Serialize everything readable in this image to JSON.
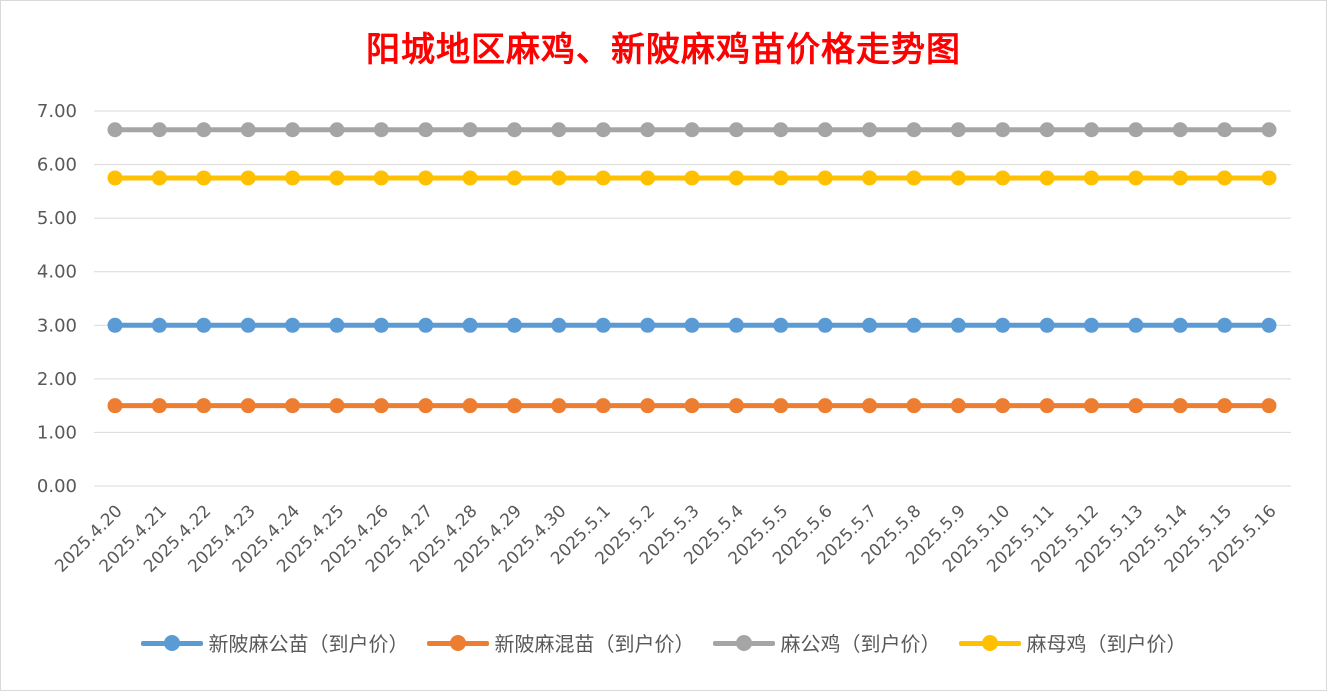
{
  "chart_data": {
    "type": "line",
    "title": "阳城地区麻鸡、新陂麻鸡苗价格走势图",
    "xlabel": "",
    "ylabel": "",
    "ylim": [
      0,
      7
    ],
    "yticks": [
      "0.00",
      "1.00",
      "2.00",
      "3.00",
      "4.00",
      "5.00",
      "6.00",
      "7.00"
    ],
    "grid": true,
    "legend_position": "bottom",
    "x": [
      "2025.4.20",
      "2025.4.21",
      "2025.4.22",
      "2025.4.23",
      "2025.4.24",
      "2025.4.25",
      "2025.4.26",
      "2025.4.27",
      "2025.4.28",
      "2025.4.29",
      "2025.4.30",
      "2025.5.1",
      "2025.5.2",
      "2025.5.3",
      "2025.5.4",
      "2025.5.5",
      "2025.5.6",
      "2025.5.7",
      "2025.5.8",
      "2025.5.9",
      "2025.5.10",
      "2025.5.11",
      "2025.5.12",
      "2025.5.13",
      "2025.5.14",
      "2025.5.15",
      "2025.5.16"
    ],
    "series": [
      {
        "name": "新陂麻公苗（到户价）",
        "color": "#5b9bd5",
        "values": [
          3.0,
          3.0,
          3.0,
          3.0,
          3.0,
          3.0,
          3.0,
          3.0,
          3.0,
          3.0,
          3.0,
          3.0,
          3.0,
          3.0,
          3.0,
          3.0,
          3.0,
          3.0,
          3.0,
          3.0,
          3.0,
          3.0,
          3.0,
          3.0,
          3.0,
          3.0,
          3.0
        ]
      },
      {
        "name": "新陂麻混苗（到户价）",
        "color": "#ed7d31",
        "values": [
          1.5,
          1.5,
          1.5,
          1.5,
          1.5,
          1.5,
          1.5,
          1.5,
          1.5,
          1.5,
          1.5,
          1.5,
          1.5,
          1.5,
          1.5,
          1.5,
          1.5,
          1.5,
          1.5,
          1.5,
          1.5,
          1.5,
          1.5,
          1.5,
          1.5,
          1.5,
          1.5
        ]
      },
      {
        "name": "麻公鸡（到户价）",
        "color": "#a5a5a5",
        "values": [
          6.65,
          6.65,
          6.65,
          6.65,
          6.65,
          6.65,
          6.65,
          6.65,
          6.65,
          6.65,
          6.65,
          6.65,
          6.65,
          6.65,
          6.65,
          6.65,
          6.65,
          6.65,
          6.65,
          6.65,
          6.65,
          6.65,
          6.65,
          6.65,
          6.65,
          6.65,
          6.65
        ]
      },
      {
        "name": "麻母鸡（到户价）",
        "color": "#ffc000",
        "values": [
          5.75,
          5.75,
          5.75,
          5.75,
          5.75,
          5.75,
          5.75,
          5.75,
          5.75,
          5.75,
          5.75,
          5.75,
          5.75,
          5.75,
          5.75,
          5.75,
          5.75,
          5.75,
          5.75,
          5.75,
          5.75,
          5.75,
          5.75,
          5.75,
          5.75,
          5.75,
          5.75
        ]
      }
    ]
  }
}
